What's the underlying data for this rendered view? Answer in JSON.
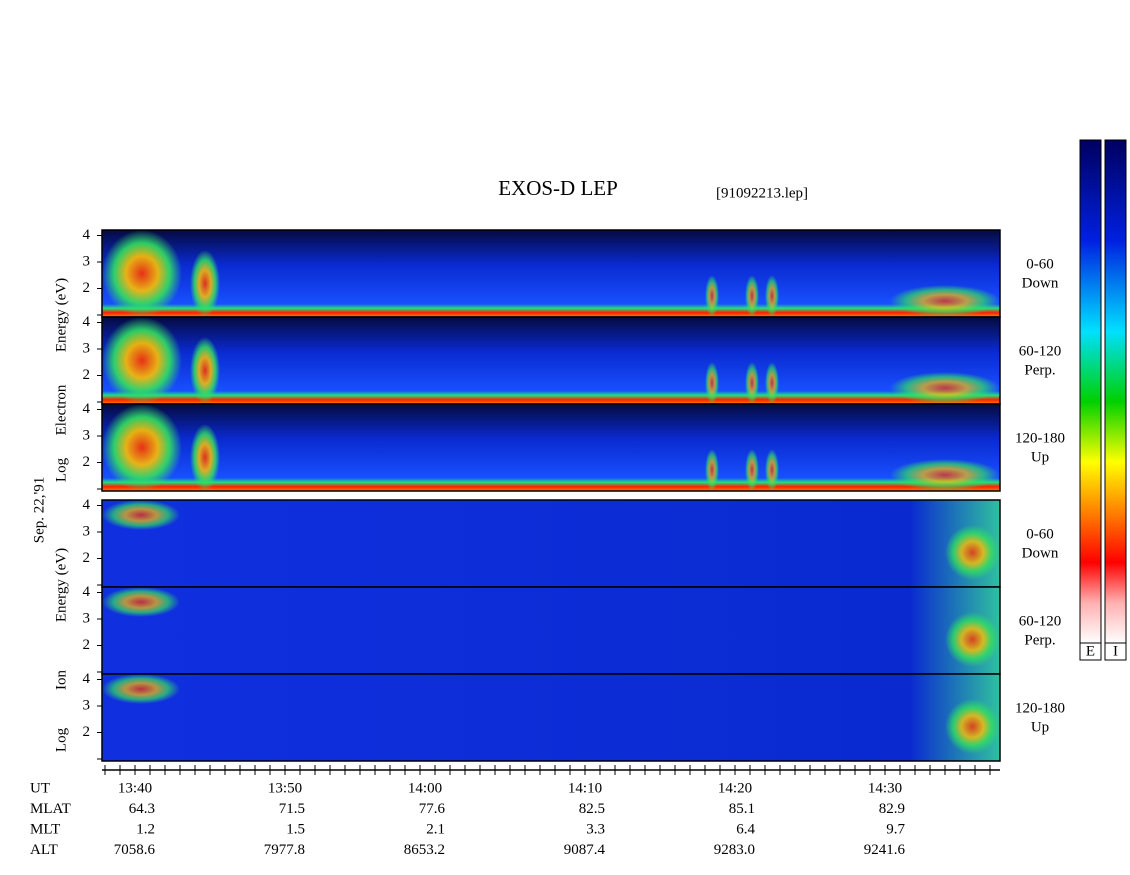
{
  "title": "EXOS-D LEP",
  "file": "[91092213.lep]",
  "date": "Sep. 22,'91",
  "electron": {
    "label": [
      "Log",
      "Electron",
      "Energy (eV)"
    ],
    "panels": [
      {
        "angle": "0-60",
        "direction": "Down"
      },
      {
        "angle": "60-120",
        "direction": "Perp."
      },
      {
        "angle": "120-180",
        "direction": "Up"
      }
    ]
  },
  "ion": {
    "label": [
      "Log",
      "Ion",
      "Energy (eV)"
    ],
    "panels": [
      {
        "angle": "0-60",
        "direction": "Down"
      },
      {
        "angle": "60-120",
        "direction": "Perp."
      },
      {
        "angle": "120-180",
        "direction": "Up"
      }
    ]
  },
  "energy_ticks": [
    2,
    3,
    4
  ],
  "colorbar_labels": [
    "E",
    "I"
  ],
  "footer": {
    "rows": [
      {
        "name": "UT",
        "values": [
          "13:40",
          "13:50",
          "14:00",
          "14:10",
          "14:20",
          "14:30"
        ]
      },
      {
        "name": "MLAT",
        "values": [
          "64.3",
          "71.5",
          "77.6",
          "82.5",
          "85.1",
          "82.9"
        ]
      },
      {
        "name": "MLT",
        "values": [
          "1.2",
          "1.5",
          "2.1",
          "3.3",
          "6.4",
          "9.7"
        ]
      },
      {
        "name": "ALT",
        "values": [
          "7058.6",
          "7977.8",
          "8653.2",
          "9087.4",
          "9283.0",
          "9241.6"
        ]
      }
    ]
  }
}
